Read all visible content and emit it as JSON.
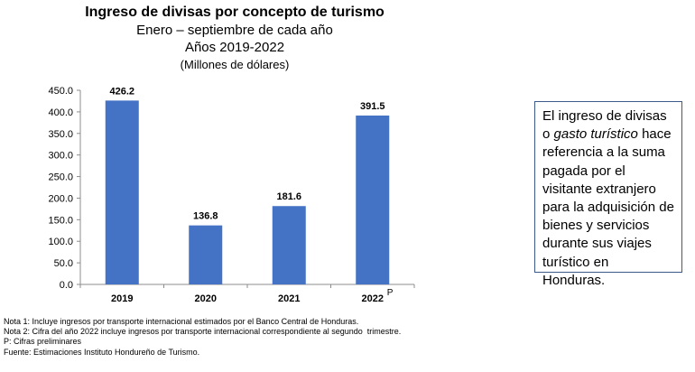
{
  "chart_data": {
    "type": "bar",
    "title": "Ingreso de divisas por concepto de turismo",
    "subtitle_lines": [
      "Enero – septiembre de cada año",
      "Años 2019-2022"
    ],
    "units_label": "(Millones de dólares)",
    "categories": [
      "2019",
      "2020",
      "2021",
      "2022"
    ],
    "category_suffix": [
      "",
      "",
      "",
      "P"
    ],
    "values": [
      426.2,
      136.8,
      181.6,
      391.5
    ],
    "data_labels": [
      "426.2",
      "136.8",
      "181.6",
      "391.5"
    ],
    "y_ticks": [
      "0.0",
      "50.0",
      "100.0",
      "150.0",
      "200.0",
      "250.0",
      "300.0",
      "350.0",
      "400.0",
      "450.0"
    ],
    "ylim": [
      0,
      450
    ],
    "grid": false,
    "bar_color": "#4472c4",
    "xlabel": "",
    "ylabel": ""
  },
  "notes": [
    "Nota 1: Incluye ingresos por transporte internacional estimados por el Banco Central de Honduras.",
    "Nota 2: Cifra del año 2022 incluye ingresos por transporte internacional correspondiente al segundo  trimestre.",
    "P: Cifras preliminares",
    "Fuente: Estimaciones Instituto Hondureño de Turismo."
  ],
  "info_box": {
    "text_before": "El ingreso de divisas o ",
    "text_italic": "gasto turístico",
    "text_after": " hace referencia a la suma pagada por el visitante extranjero para la adquisición de bienes y servicios durante sus viajes turístico en Honduras.",
    "border_color": "#3b5a8a"
  }
}
